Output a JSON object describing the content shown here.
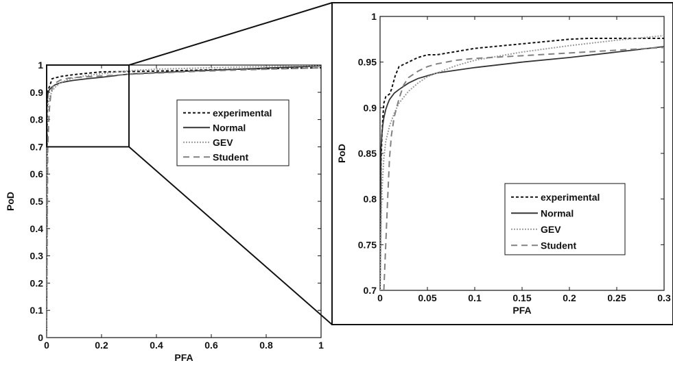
{
  "chart_data": [
    {
      "type": "line",
      "panel": "main",
      "xlabel": "PFA",
      "ylabel": "PoD",
      "xlim": [
        0,
        1
      ],
      "ylim": [
        0,
        1
      ],
      "xticks": [
        0,
        0.2,
        0.4,
        0.6,
        0.8,
        1
      ],
      "xtick_labels": [
        "0",
        "0.2",
        "0.4",
        "0.6",
        "0.8",
        "1"
      ],
      "yticks": [
        0,
        0.1,
        0.2,
        0.3,
        0.4,
        0.5,
        0.6,
        0.7,
        0.8,
        0.9,
        1
      ],
      "ytick_labels": [
        "0",
        "0.1",
        "0.2",
        "0.3",
        "0.4",
        "0.5",
        "0.6",
        "0.7",
        "0.8",
        "0.9",
        "1"
      ],
      "grid": false,
      "legend_position": "right-middle",
      "zoom_box": {
        "x": [
          0,
          0.3
        ],
        "y": [
          0.7,
          1
        ]
      },
      "series": [
        {
          "name": "experimental",
          "color": "#111111",
          "dash": "4,3",
          "x": [
            0,
            0.002,
            0.005,
            0.01,
            0.02,
            0.05,
            0.1,
            0.2,
            0.3,
            0.5,
            0.7,
            1.0
          ],
          "y": [
            0,
            0.85,
            0.91,
            0.92,
            0.95,
            0.958,
            0.965,
            0.975,
            0.976,
            0.98,
            0.985,
            0.99
          ]
        },
        {
          "name": "Normal",
          "color": "#333333",
          "dash": "",
          "x": [
            0,
            0.001,
            0.003,
            0.006,
            0.01,
            0.02,
            0.03,
            0.05,
            0.08,
            0.1,
            0.15,
            0.2,
            0.25,
            0.3,
            0.4,
            0.5,
            0.6,
            0.7,
            0.8,
            0.9,
            1.0
          ],
          "y": [
            0,
            0.86,
            0.885,
            0.9,
            0.91,
            0.92,
            0.927,
            0.935,
            0.941,
            0.944,
            0.95,
            0.955,
            0.961,
            0.967,
            0.972,
            0.977,
            0.981,
            0.985,
            0.989,
            0.993,
            0.997
          ]
        },
        {
          "name": "GEV",
          "color": "#9a9a9a",
          "dash": "2,2",
          "x": [
            0,
            0.001,
            0.003,
            0.006,
            0.01,
            0.02,
            0.03,
            0.05,
            0.08,
            0.1,
            0.15,
            0.2,
            0.25,
            0.3,
            0.4,
            0.6,
            0.8,
            1.0
          ],
          "y": [
            0,
            0.74,
            0.82,
            0.86,
            0.88,
            0.905,
            0.918,
            0.935,
            0.947,
            0.953,
            0.962,
            0.968,
            0.974,
            0.979,
            0.985,
            0.99,
            0.995,
            0.999
          ]
        },
        {
          "name": "Student",
          "color": "#808080",
          "dash": "9,6",
          "x": [
            0,
            0.004,
            0.006,
            0.008,
            0.01,
            0.015,
            0.02,
            0.03,
            0.05,
            0.08,
            0.1,
            0.15,
            0.2,
            0.25,
            0.3,
            0.5,
            0.7,
            1.0
          ],
          "y": [
            0,
            0.7,
            0.75,
            0.8,
            0.84,
            0.89,
            0.915,
            0.933,
            0.945,
            0.952,
            0.954,
            0.957,
            0.96,
            0.963,
            0.966,
            0.975,
            0.982,
            0.99
          ]
        }
      ]
    },
    {
      "type": "line",
      "panel": "zoom",
      "xlabel": "PFA",
      "ylabel": "PoD",
      "xlim": [
        0,
        0.3
      ],
      "ylim": [
        0.7,
        1
      ],
      "xticks": [
        0,
        0.05,
        0.1,
        0.15,
        0.2,
        0.25,
        0.3
      ],
      "xtick_labels": [
        "0",
        "0.05",
        "0.1",
        "0.15",
        "0.2",
        "0.25",
        "0.3"
      ],
      "yticks": [
        0.7,
        0.75,
        0.8,
        0.85,
        0.9,
        0.95,
        1
      ],
      "ytick_labels": [
        "0.7",
        "0.75",
        "0.8",
        "0.85",
        "0.9",
        "0.95",
        "1"
      ],
      "grid": false,
      "legend_position": "bottom-right",
      "series": [
        {
          "name": "experimental",
          "color": "#111111",
          "dash": "4,3",
          "x": [
            0,
            0.001,
            0.002,
            0.003,
            0.004,
            0.006,
            0.01,
            0.012,
            0.016,
            0.02,
            0.03,
            0.04,
            0.05,
            0.06,
            0.1,
            0.15,
            0.2,
            0.22,
            0.25,
            0.3
          ],
          "y": [
            0.7,
            0.84,
            0.87,
            0.89,
            0.905,
            0.912,
            0.915,
            0.92,
            0.935,
            0.945,
            0.95,
            0.955,
            0.958,
            0.958,
            0.965,
            0.97,
            0.975,
            0.976,
            0.976,
            0.976
          ]
        },
        {
          "name": "Normal",
          "color": "#333333",
          "dash": "",
          "x": [
            0,
            0.001,
            0.002,
            0.003,
            0.004,
            0.006,
            0.008,
            0.01,
            0.015,
            0.02,
            0.03,
            0.04,
            0.05,
            0.06,
            0.08,
            0.1,
            0.15,
            0.2,
            0.25,
            0.3
          ],
          "y": [
            0.7,
            0.855,
            0.872,
            0.882,
            0.889,
            0.898,
            0.904,
            0.909,
            0.916,
            0.92,
            0.927,
            0.932,
            0.935,
            0.938,
            0.941,
            0.944,
            0.95,
            0.955,
            0.961,
            0.967
          ]
        },
        {
          "name": "GEV",
          "color": "#9a9a9a",
          "dash": "2,2",
          "x": [
            0,
            0.001,
            0.002,
            0.004,
            0.006,
            0.01,
            0.015,
            0.02,
            0.03,
            0.04,
            0.05,
            0.06,
            0.08,
            0.1,
            0.15,
            0.2,
            0.25,
            0.3
          ],
          "y": [
            0.7,
            0.77,
            0.81,
            0.845,
            0.863,
            0.88,
            0.894,
            0.905,
            0.918,
            0.927,
            0.934,
            0.938,
            0.946,
            0.952,
            0.961,
            0.968,
            0.974,
            0.979
          ]
        },
        {
          "name": "Student",
          "color": "#808080",
          "dash": "9,6",
          "x": [
            0.004,
            0.006,
            0.008,
            0.01,
            0.012,
            0.015,
            0.02,
            0.025,
            0.03,
            0.04,
            0.05,
            0.06,
            0.08,
            0.1,
            0.15,
            0.2,
            0.25,
            0.3
          ],
          "y": [
            0.7,
            0.75,
            0.8,
            0.845,
            0.87,
            0.89,
            0.91,
            0.925,
            0.933,
            0.94,
            0.945,
            0.948,
            0.952,
            0.954,
            0.957,
            0.96,
            0.963,
            0.966
          ]
        }
      ]
    }
  ]
}
